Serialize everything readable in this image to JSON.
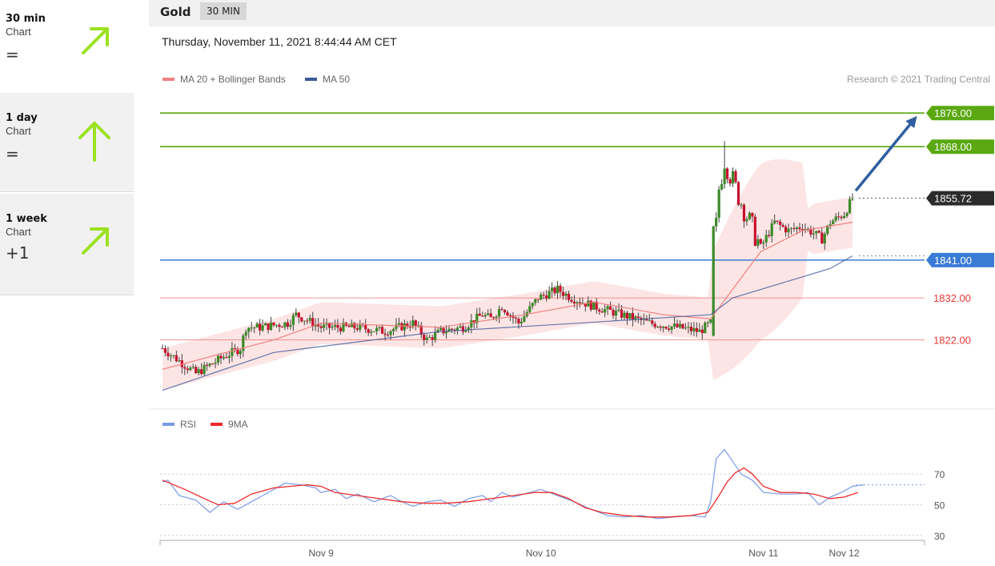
{
  "sidebar": {
    "items": [
      {
        "period": "30 min",
        "label": "Chart",
        "change": "=",
        "arrow": "up-right-arrow-icon"
      },
      {
        "period": "1 day",
        "label": "Chart",
        "change": "=",
        "arrow": "up-arrow-icon"
      },
      {
        "period": "1 week",
        "label": "Chart",
        "change": "+1",
        "arrow": "up-right-arrow-icon"
      }
    ],
    "arrow_color": "#9be21f"
  },
  "header": {
    "asset": "Gold",
    "timeframe": "30 MIN"
  },
  "datetime": "Thursday, November 11, 2021 8:44:44 AM CET",
  "colors": {
    "up": "#3a8a27",
    "down": "#c8102e",
    "ma20": "#f08080",
    "band": "#fde0e0",
    "ma50": "#3c5a9a",
    "resistance": "#5ba812",
    "pivot": "#3a7bd5",
    "support": "#ef6b6b",
    "rsi": "#7a9ae8",
    "rsi_ma": "#ef2a2a",
    "target_arrow": "#2f5fa0"
  },
  "chart_data": [
    {
      "type": "candlestick",
      "legend": [
        {
          "name": "MA 20 + Bollinger Bands",
          "color": "#f08080"
        },
        {
          "name": "MA 50",
          "color": "#3c5a9a"
        }
      ],
      "credit": "Research © 2021 Trading Central",
      "x_labels": [
        {
          "label": "Nov 9",
          "index": 57
        },
        {
          "label": "Nov 10",
          "index": 136
        },
        {
          "label": "Nov 11",
          "index": 216
        },
        {
          "label": "Nov 12",
          "index": 245
        }
      ],
      "ylim": [
        1808,
        1881
      ],
      "levels": [
        {
          "value": 1876.0,
          "label": "1876.00",
          "kind": "resistance"
        },
        {
          "value": 1868.0,
          "label": "1868.00",
          "kind": "resistance"
        },
        {
          "value": 1855.72,
          "label": "1855.72",
          "kind": "last"
        },
        {
          "value": 1841.0,
          "label": "1841.00",
          "kind": "pivot"
        },
        {
          "value": 1832.0,
          "label": "1832.00",
          "kind": "support"
        },
        {
          "value": 1822.0,
          "label": "1822.00",
          "kind": "support"
        }
      ],
      "candle_close_path": [
        [
          0,
          1820
        ],
        [
          12,
          1814
        ],
        [
          22,
          1818
        ],
        [
          28,
          1820
        ],
        [
          30,
          1825
        ],
        [
          35,
          1825
        ],
        [
          45,
          1826
        ],
        [
          48,
          1828
        ],
        [
          57,
          1825
        ],
        [
          70,
          1825
        ],
        [
          80,
          1824
        ],
        [
          90,
          1826
        ],
        [
          95,
          1822
        ],
        [
          100,
          1824
        ],
        [
          108,
          1825
        ],
        [
          115,
          1828
        ],
        [
          118,
          1827
        ],
        [
          122,
          1830
        ],
        [
          128,
          1826
        ],
        [
          135,
          1832
        ],
        [
          142,
          1834
        ],
        [
          147,
          1832
        ],
        [
          155,
          1830
        ],
        [
          165,
          1828
        ],
        [
          175,
          1826
        ],
        [
          185,
          1825
        ],
        [
          193,
          1824
        ],
        [
          197,
          1826
        ],
        [
          199,
          1849
        ],
        [
          200,
          1858
        ],
        [
          202,
          1865
        ],
        [
          206,
          1858
        ],
        [
          211,
          1850
        ],
        [
          215,
          1844
        ],
        [
          220,
          1850
        ],
        [
          225,
          1848
        ],
        [
          230,
          1849
        ],
        [
          235,
          1847
        ],
        [
          237,
          1846
        ],
        [
          240,
          1850
        ],
        [
          245,
          1852
        ],
        [
          248,
          1855.72
        ]
      ],
      "ma20_path": [
        [
          0,
          1815
        ],
        [
          40,
          1822
        ],
        [
          57,
          1826
        ],
        [
          100,
          1825
        ],
        [
          130,
          1828
        ],
        [
          155,
          1831
        ],
        [
          180,
          1828
        ],
        [
          197,
          1827
        ],
        [
          215,
          1843
        ],
        [
          230,
          1848
        ],
        [
          248,
          1850
        ]
      ],
      "ma50_path": [
        [
          0,
          1810
        ],
        [
          40,
          1819
        ],
        [
          100,
          1824
        ],
        [
          150,
          1826
        ],
        [
          197,
          1828
        ],
        [
          205,
          1832
        ],
        [
          225,
          1836
        ],
        [
          240,
          1839
        ],
        [
          248,
          1842
        ]
      ],
      "target_arrow": {
        "from_index": 248,
        "from_value": 1857.5,
        "to_index": 275,
        "to_value": 1876
      }
    },
    {
      "type": "line",
      "legend": [
        {
          "name": "RSI",
          "color": "#7a9ae8"
        },
        {
          "name": "9MA",
          "color": "#ef2a2a"
        }
      ],
      "y_ticks": [
        70,
        50,
        30
      ],
      "ylim": [
        20,
        92
      ],
      "rsi_path": [
        [
          0,
          65
        ],
        [
          2,
          66
        ],
        [
          6,
          56
        ],
        [
          12,
          53
        ],
        [
          17,
          45
        ],
        [
          22,
          52
        ],
        [
          27,
          47
        ],
        [
          32,
          52
        ],
        [
          36,
          56
        ],
        [
          40,
          60
        ],
        [
          44,
          64
        ],
        [
          50,
          63
        ],
        [
          55,
          61
        ],
        [
          57,
          58
        ],
        [
          62,
          60
        ],
        [
          66,
          54
        ],
        [
          70,
          57
        ],
        [
          76,
          52
        ],
        [
          82,
          56
        ],
        [
          86,
          52
        ],
        [
          90,
          49
        ],
        [
          95,
          52
        ],
        [
          100,
          53
        ],
        [
          105,
          49
        ],
        [
          110,
          54
        ],
        [
          115,
          56
        ],
        [
          118,
          52
        ],
        [
          122,
          58
        ],
        [
          126,
          55
        ],
        [
          130,
          57
        ],
        [
          136,
          60
        ],
        [
          142,
          56
        ],
        [
          148,
          52
        ],
        [
          154,
          47
        ],
        [
          160,
          43
        ],
        [
          166,
          42
        ],
        [
          172,
          43
        ],
        [
          178,
          41
        ],
        [
          184,
          42
        ],
        [
          190,
          43
        ],
        [
          195,
          42
        ],
        [
          197,
          52
        ],
        [
          199,
          80
        ],
        [
          202,
          86
        ],
        [
          205,
          78
        ],
        [
          208,
          70
        ],
        [
          212,
          66
        ],
        [
          216,
          58
        ],
        [
          222,
          57
        ],
        [
          228,
          57
        ],
        [
          232,
          58
        ],
        [
          236,
          50
        ],
        [
          240,
          55
        ],
        [
          244,
          58
        ],
        [
          248,
          62
        ],
        [
          252,
          63
        ]
      ],
      "ma_path": [
        [
          0,
          66
        ],
        [
          8,
          60
        ],
        [
          15,
          54
        ],
        [
          20,
          50
        ],
        [
          26,
          51
        ],
        [
          32,
          57
        ],
        [
          40,
          61
        ],
        [
          46,
          62
        ],
        [
          52,
          63
        ],
        [
          57,
          62
        ],
        [
          62,
          58
        ],
        [
          70,
          56
        ],
        [
          78,
          54
        ],
        [
          86,
          52
        ],
        [
          94,
          51
        ],
        [
          102,
          51
        ],
        [
          110,
          52
        ],
        [
          118,
          54
        ],
        [
          126,
          56
        ],
        [
          134,
          58
        ],
        [
          140,
          58
        ],
        [
          146,
          54
        ],
        [
          152,
          48
        ],
        [
          158,
          45
        ],
        [
          166,
          43
        ],
        [
          174,
          42
        ],
        [
          182,
          42
        ],
        [
          190,
          43
        ],
        [
          196,
          45
        ],
        [
          199,
          53
        ],
        [
          203,
          65
        ],
        [
          206,
          71
        ],
        [
          209,
          74
        ],
        [
          212,
          70
        ],
        [
          216,
          62
        ],
        [
          222,
          58
        ],
        [
          228,
          58
        ],
        [
          234,
          57
        ],
        [
          240,
          54
        ],
        [
          245,
          55
        ],
        [
          250,
          58
        ]
      ]
    }
  ]
}
